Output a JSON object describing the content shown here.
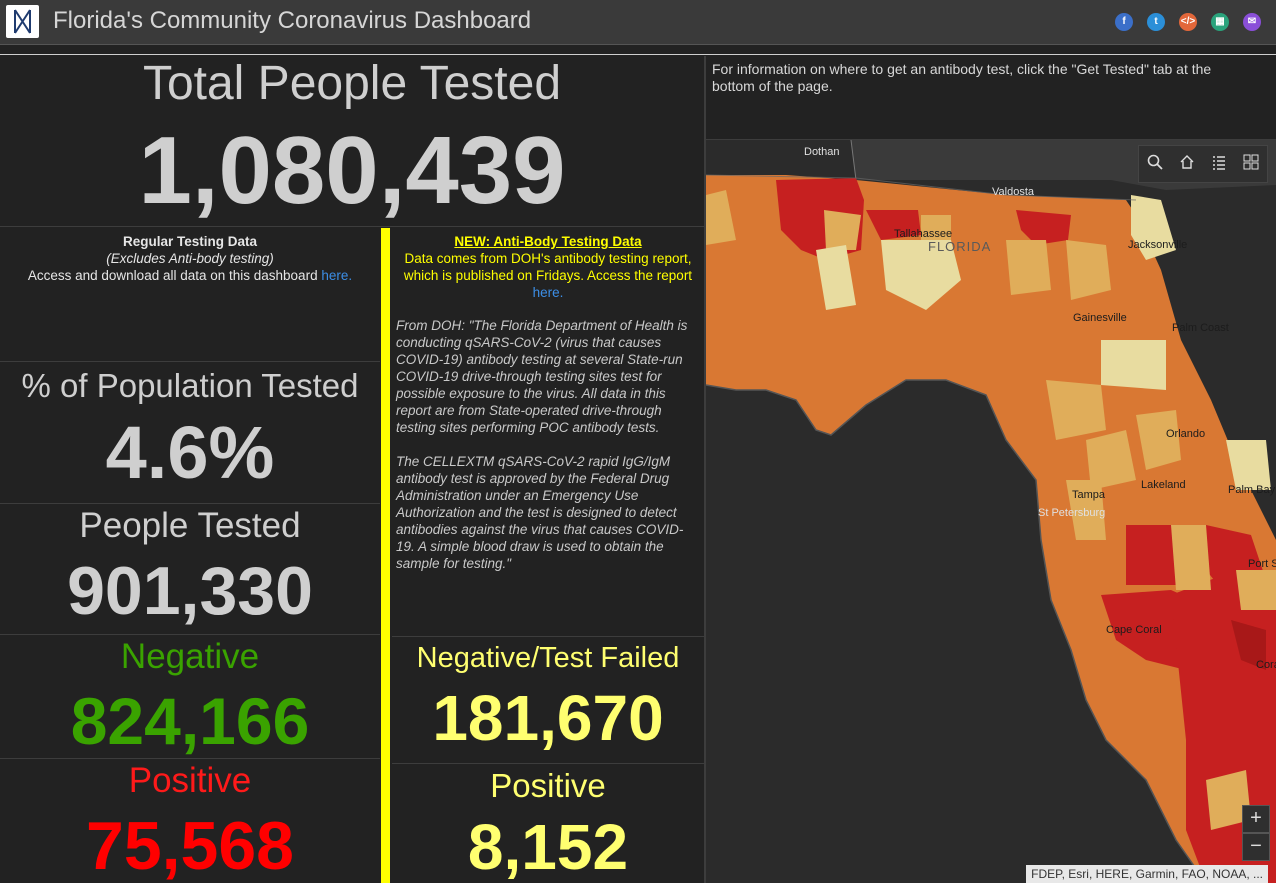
{
  "header": {
    "title": "Florida's Community Coronavirus Dashboard",
    "share": [
      "facebook-icon",
      "twitter-icon",
      "embed-icon",
      "qr-icon",
      "email-icon"
    ]
  },
  "total": {
    "label": "Total People Tested",
    "value": "1,080,439"
  },
  "regular": {
    "heading": "Regular Testing Data",
    "sub": "(Excludes Anti-body testing)",
    "access_text": "Access and download all data on this dashboard",
    "link": "here."
  },
  "antibody": {
    "heading": "NEW: Anti-Body Testing Data",
    "line": "Data comes from DOH's antibody testing report, which is published on Fridays. Access the report",
    "link": "here.",
    "quote1": "From DOH: \"The Florida Department of Health is conducting qSARS-CoV-2 (virus that causes COVID-19) antibody testing at several State-run COVID-19 drive-through testing sites test for possible exposure to the virus. All data in this report are from State-operated drive-through testing sites performing POC antibody tests.",
    "quote2": "The CELLEXTM qSARS-CoV-2 rapid IgG/IgM antibody test is approved by the Federal Drug Administration under an Emergency Use Authorization and the test is designed to detect antibodies against the virus that causes COVID-19. A simple blood draw is used to obtain the sample for testing.\""
  },
  "pct": {
    "label": "% of Population Tested",
    "value": "4.6%"
  },
  "people": {
    "label": "People Tested",
    "value": "901,330"
  },
  "negative": {
    "label": "Negative",
    "value": "824,166",
    "color": "#3aa300"
  },
  "positive": {
    "label": "Positive",
    "value": "75,568",
    "color": "#ff0000"
  },
  "ab_negative": {
    "label": "Negative/Test Failed",
    "value": "181,670",
    "color": "#ffff70"
  },
  "ab_positive": {
    "label": "Positive",
    "value": "8,152",
    "color": "#ffff70"
  },
  "map": {
    "info": "For information on where to get an antibody test, click the \"Get Tested\" tab at the bottom of the page.",
    "attribution": "FDEP, Esri, HERE, Garmin, FAO, NOAA, ...",
    "cities": [
      "Dothan",
      "Valdosta",
      "Tallahassee",
      "FLORIDA",
      "Jacksonville",
      "Gainesville",
      "Palm Coast",
      "Orlando",
      "Lakeland",
      "Tampa",
      "St Petersburg",
      "Palm Bay",
      "Port St",
      "Cape Coral",
      "Cora"
    ],
    "tools": [
      "search-icon",
      "home-icon",
      "list-icon",
      "basemap-icon"
    ]
  }
}
